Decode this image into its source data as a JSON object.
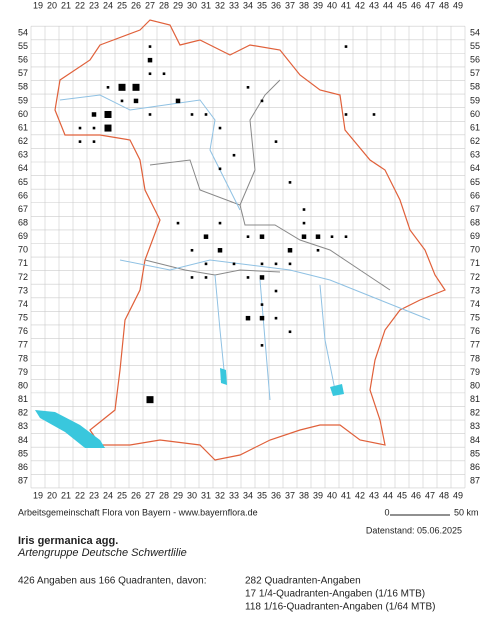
{
  "grid": {
    "columns": [
      "19",
      "20",
      "21",
      "22",
      "23",
      "24",
      "25",
      "26",
      "27",
      "28",
      "29",
      "30",
      "31",
      "32",
      "33",
      "34",
      "35",
      "36",
      "37",
      "38",
      "39",
      "40",
      "41",
      "42",
      "43",
      "44",
      "45",
      "46",
      "47",
      "48",
      "49"
    ],
    "rows": [
      "54",
      "55",
      "56",
      "57",
      "58",
      "59",
      "60",
      "61",
      "62",
      "63",
      "64",
      "65",
      "66",
      "67",
      "68",
      "69",
      "70",
      "71",
      "72",
      "73",
      "74",
      "75",
      "76",
      "77",
      "78",
      "79",
      "80",
      "81",
      "82",
      "83",
      "84",
      "85",
      "86",
      "87"
    ]
  },
  "credit": "Arbeitsgemeinschaft Flora von Bayern - www.bayernflora.de",
  "scale": {
    "start": "0",
    "end": "50 km"
  },
  "date": "Datenstand: 05.06.2025",
  "species": {
    "name": "Iris germanica agg.",
    "group": "Artengruppe Deutsche Schwertlilie"
  },
  "summary": {
    "total": "426 Angaben aus 166 Quadranten, davon:",
    "lines": [
      "282 Quadranten-Angaben",
      "17 1/4-Quadranten-Angaben (1/16 MTB)",
      "118 1/16-Quadranten-Angaben (1/64 MTB)"
    ]
  }
}
